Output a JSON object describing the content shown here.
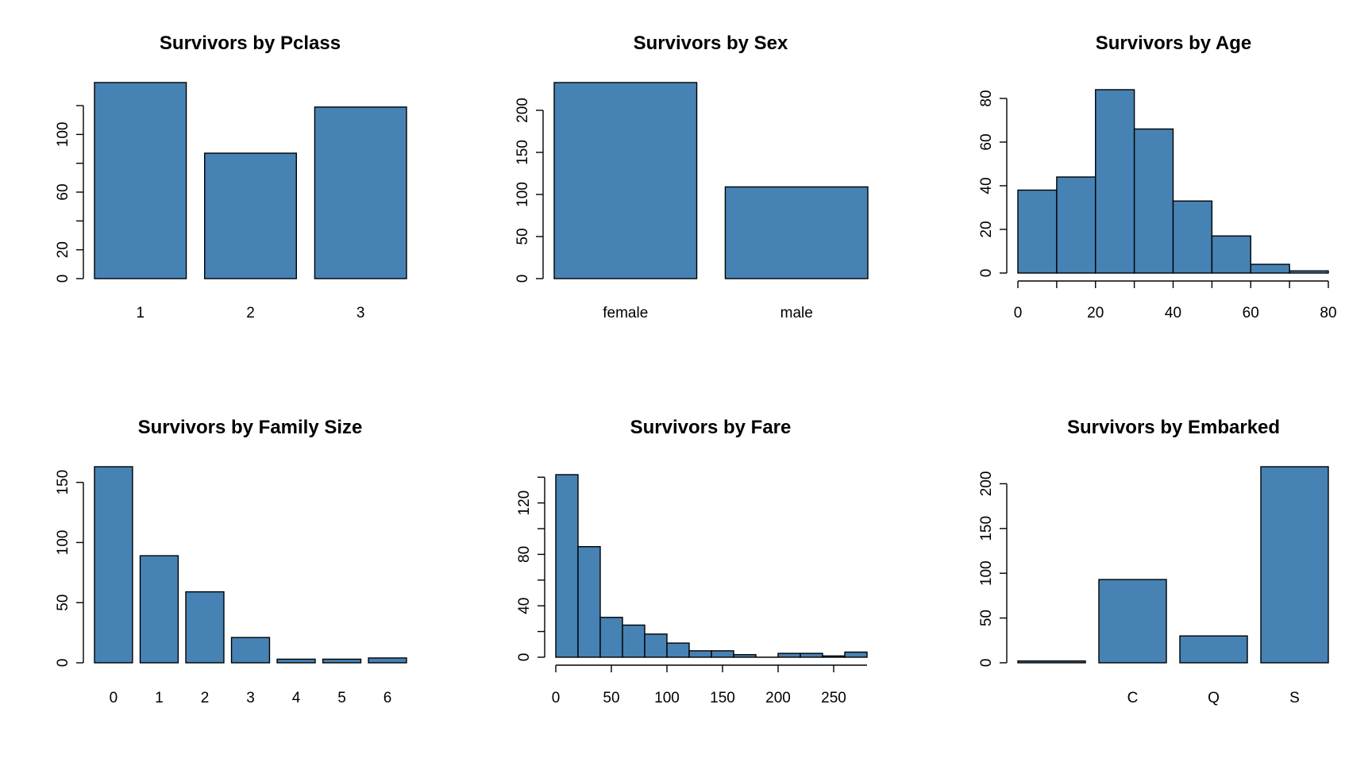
{
  "colors": {
    "bar_fill": "#4682B4",
    "bar_stroke": "#000000",
    "background": "#FFFFFF"
  },
  "chart_data": [
    {
      "id": "pclass",
      "type": "bar",
      "title": "Survivors by Pclass",
      "categories": [
        "1",
        "2",
        "3"
      ],
      "values": [
        136,
        87,
        119
      ],
      "ylim": [
        0,
        136
      ],
      "yticks": [
        0,
        20,
        60,
        100
      ],
      "yminor": [
        40,
        80,
        120
      ]
    },
    {
      "id": "sex",
      "type": "bar",
      "title": "Survivors by Sex",
      "categories": [
        "female",
        "male"
      ],
      "values": [
        233,
        109
      ],
      "ylim": [
        0,
        233
      ],
      "yticks": [
        0,
        50,
        100,
        150,
        200
      ],
      "yminor": []
    },
    {
      "id": "age",
      "type": "histogram",
      "title": "Survivors by Age",
      "bins": [
        0,
        10,
        20,
        30,
        40,
        50,
        60,
        70,
        80
      ],
      "values": [
        38,
        44,
        84,
        66,
        33,
        17,
        4,
        1
      ],
      "ylim": [
        0,
        84
      ],
      "xlim": [
        0,
        80
      ],
      "yticks": [
        0,
        20,
        40,
        60,
        80
      ],
      "xticks": [
        0,
        20,
        40,
        60,
        80
      ],
      "xminor": [
        10,
        30,
        50,
        70
      ]
    },
    {
      "id": "family",
      "type": "bar",
      "title": "Survivors by Family Size",
      "categories": [
        "0",
        "1",
        "2",
        "3",
        "4",
        "5",
        "6"
      ],
      "values": [
        163,
        89,
        59,
        21,
        3,
        3,
        4
      ],
      "ylim": [
        0,
        163
      ],
      "yticks": [
        0,
        50,
        100,
        150
      ],
      "yminor": []
    },
    {
      "id": "fare",
      "type": "histogram",
      "title": "Survivors by Fare",
      "bins": [
        0,
        20,
        40,
        60,
        80,
        100,
        120,
        140,
        160,
        180,
        200,
        220,
        240,
        260,
        280
      ],
      "values": [
        142,
        86,
        31,
        25,
        18,
        11,
        5,
        5,
        2,
        0,
        3,
        3,
        1,
        4
      ],
      "ylim": [
        0,
        142
      ],
      "xlim": [
        0,
        280
      ],
      "yticks": [
        0,
        40,
        80,
        120
      ],
      "yminor": [
        20,
        60,
        100,
        140
      ],
      "xticks": [
        0,
        50,
        100,
        150,
        200,
        250
      ],
      "xminor": []
    },
    {
      "id": "embarked",
      "type": "bar",
      "title": "Survivors by Embarked",
      "categories": [
        "",
        "C",
        "Q",
        "S"
      ],
      "values": [
        2,
        93,
        30,
        219
      ],
      "ylim": [
        0,
        219
      ],
      "yticks": [
        0,
        50,
        100,
        150,
        200
      ],
      "yminor": []
    }
  ]
}
